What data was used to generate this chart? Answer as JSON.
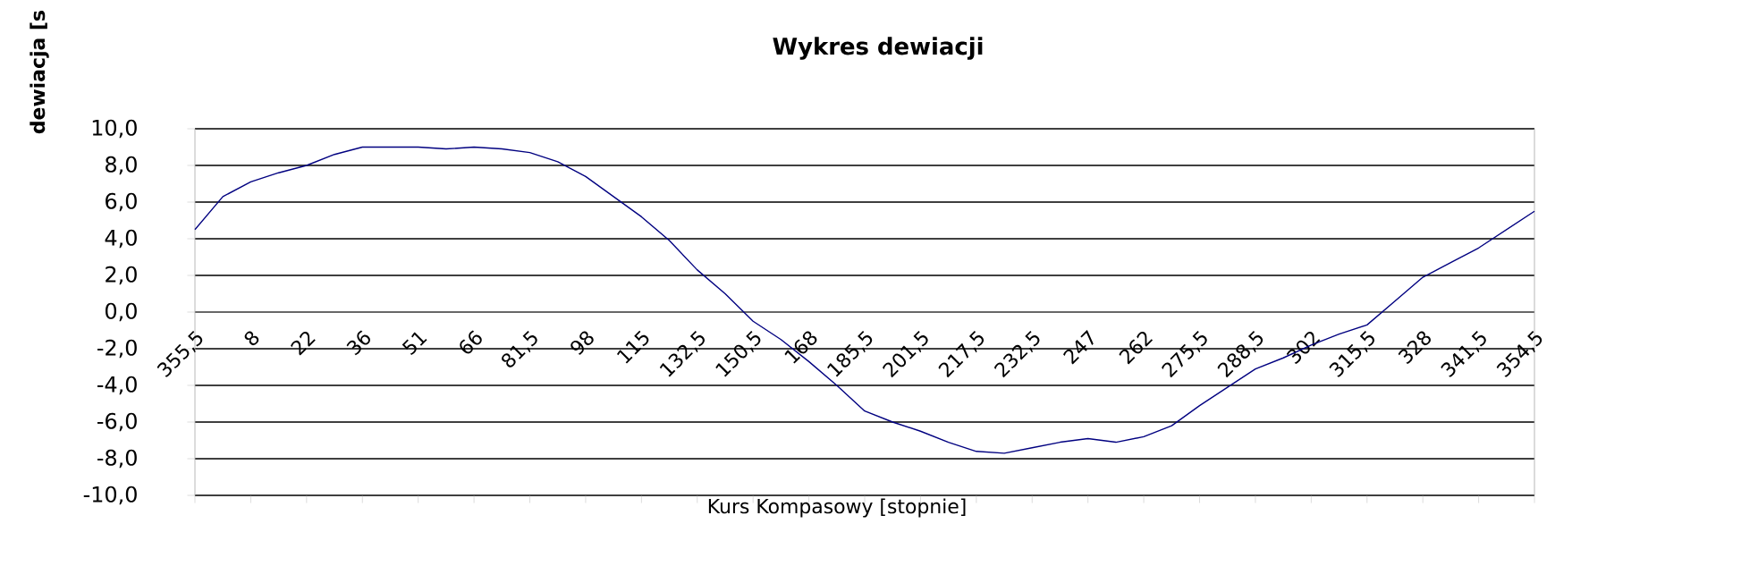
{
  "chart_data": {
    "type": "line",
    "title": "Wykres dewiacji",
    "xlabel": "Kurs Kompasowy  [stopnie]",
    "ylabel": "dewiacja [s",
    "categories": [
      "355,5",
      null,
      "8",
      null,
      "22",
      null,
      "36",
      null,
      "51",
      null,
      "66",
      null,
      "81,5",
      null,
      "98",
      null,
      "115",
      null,
      "132,5",
      null,
      "150,5",
      null,
      "168",
      null,
      "185,5",
      null,
      "201,5",
      null,
      "217,5",
      null,
      "232,5",
      null,
      "247",
      null,
      "262",
      null,
      "275,5",
      null,
      "288,5",
      null,
      "302",
      null,
      "315,5",
      null,
      "328",
      null,
      "341,5",
      null,
      "354,5"
    ],
    "series": [
      {
        "color": "#000080",
        "values": [
          4.5,
          6.3,
          7.1,
          7.6,
          8.0,
          8.6,
          9.0,
          9.0,
          9.0,
          8.9,
          9.0,
          8.9,
          8.7,
          8.2,
          7.4,
          6.3,
          5.2,
          3.9,
          2.3,
          1.0,
          -0.5,
          -1.5,
          -2.7,
          -4.0,
          -5.4,
          -6.0,
          -6.5,
          -7.1,
          -7.6,
          -7.7,
          -7.4,
          -7.1,
          -6.9,
          -7.1,
          -6.8,
          -6.2,
          -5.1,
          -4.1,
          -3.1,
          -2.5,
          -1.8,
          -1.2,
          -0.7,
          0.6,
          1.9,
          2.7,
          3.5,
          4.5,
          5.5
        ]
      }
    ],
    "ylim": [
      -10,
      10
    ],
    "yticks": [
      {
        "value": -10,
        "label": "-10,0"
      },
      {
        "value": -8,
        "label": "-8,0"
      },
      {
        "value": -6,
        "label": "-6,0"
      },
      {
        "value": -4,
        "label": "-4,0"
      },
      {
        "value": -2,
        "label": "-2,0"
      },
      {
        "value": 0,
        "label": "0,0"
      },
      {
        "value": 2,
        "label": "2,0"
      },
      {
        "value": 4,
        "label": "4,0"
      },
      {
        "value": 6,
        "label": "6,0"
      },
      {
        "value": 8,
        "label": "8,0"
      },
      {
        "value": 10,
        "label": "10,0"
      }
    ],
    "grid": "y",
    "marker": "none",
    "line_style": "solid"
  }
}
